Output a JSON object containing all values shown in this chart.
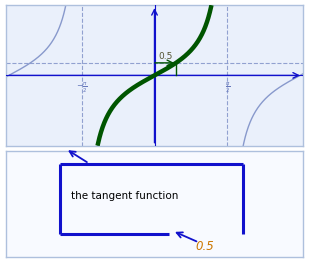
{
  "top_panel_bg": "#eaf0fb",
  "bottom_panel_bg": "#f8faff",
  "border_color": "#aec0dd",
  "tan_color": "#8899cc",
  "green_color": "#005500",
  "blue_color": "#1111cc",
  "x_range": [
    -3.2,
    3.2
  ],
  "y_range": [
    -2.8,
    2.8
  ],
  "h_line_y": 0.5,
  "v_line_x": 0.46364760900080615,
  "label_05": "0.5",
  "box_label": "the tangent function",
  "bottom_label": "0.5",
  "tick_label_color": "#6677bb",
  "label_color_05": "#555533",
  "orange_color": "#cc7700"
}
